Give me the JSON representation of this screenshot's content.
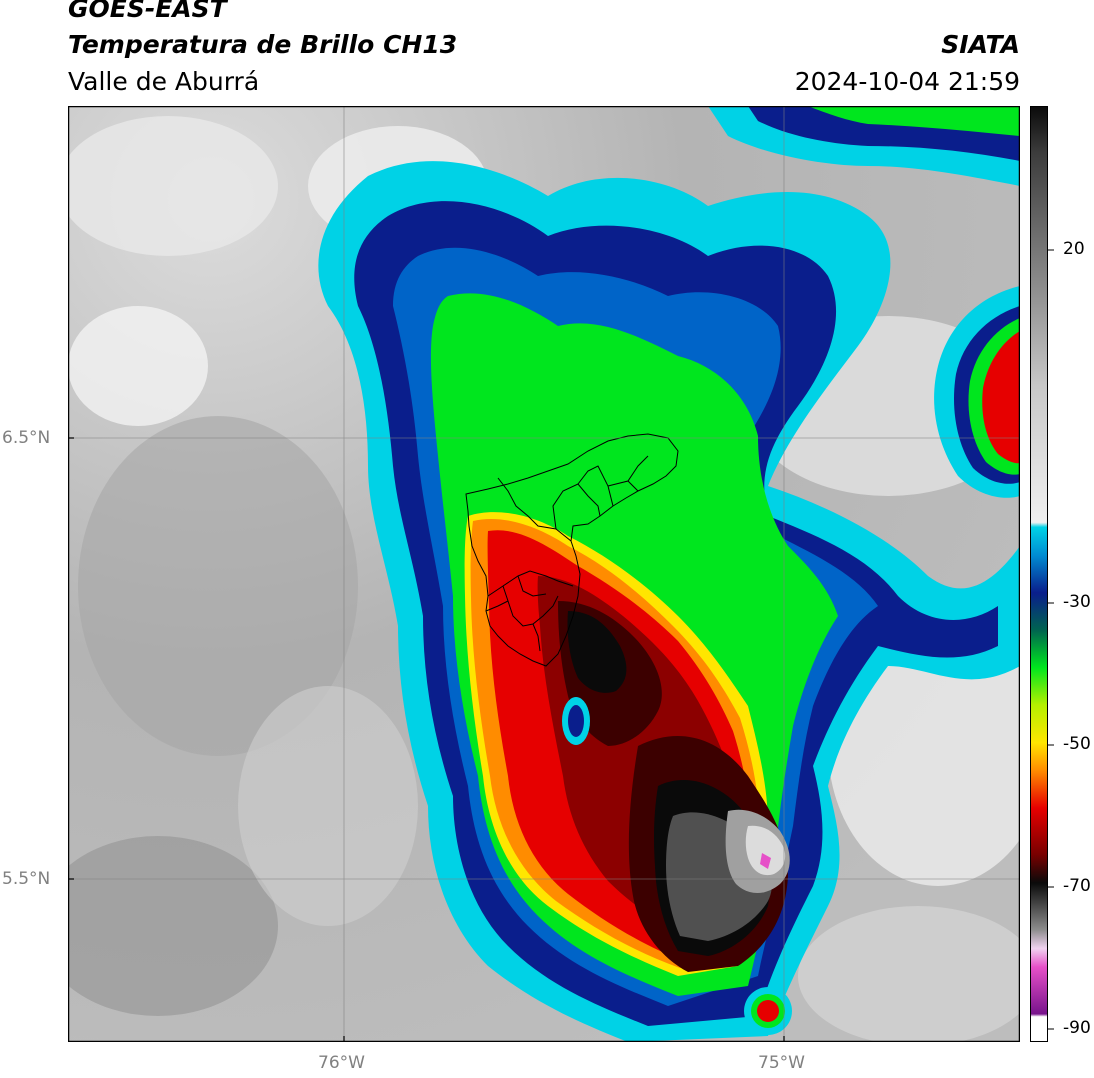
{
  "header": {
    "satellite": "GOES-EAST",
    "product": "Temperatura de Brillo CH13",
    "region": "Valle de Aburrá",
    "agency": "SIATA",
    "datetime": "2024-10-04 21:59"
  },
  "map": {
    "lon_labels": [
      "76°W",
      "75°W"
    ],
    "lat_labels": [
      "6.5°N",
      "5.5°N"
    ]
  },
  "colorbar": {
    "tick_labels": [
      "20",
      "-30",
      "-50",
      "-70",
      "-90"
    ],
    "colors": {
      "warm_gray_dark": "#6e6e6e",
      "warm_gray_light": "#f0f0f0",
      "cyan": "#00d2e6",
      "blue": "#0a1e8c",
      "green": "#00e61e",
      "yellow": "#ffe600",
      "orange": "#ff8c00",
      "red": "#e60000",
      "dark_red": "#3c0000",
      "black": "#0a0a0a",
      "pink": "#e650c8",
      "purple": "#78148c"
    }
  }
}
